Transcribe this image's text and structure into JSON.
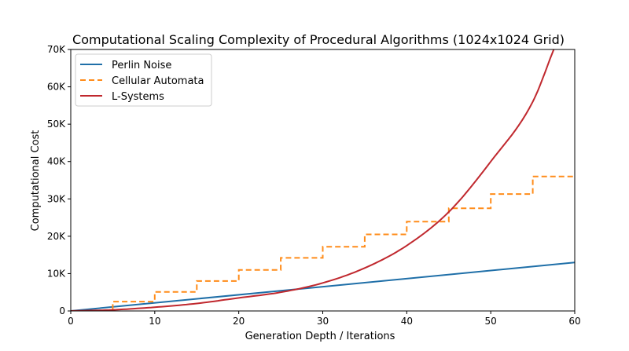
{
  "chart_data": {
    "type": "line",
    "title": "Computational Scaling Complexity of Procedural Algorithms (1024x1024 Grid)",
    "xlabel": "Generation Depth / Iterations",
    "ylabel": "Computational Cost",
    "xlim": [
      0,
      60
    ],
    "ylim": [
      0,
      70000
    ],
    "x_ticks": [
      0,
      10,
      20,
      30,
      40,
      50,
      60
    ],
    "y_ticks": [
      0,
      10000,
      20000,
      30000,
      40000,
      50000,
      60000,
      70000
    ],
    "x_tick_labels": [
      "0",
      "10",
      "20",
      "30",
      "40",
      "50",
      "60"
    ],
    "y_tick_labels": [
      "0",
      "10K",
      "20K",
      "30K",
      "40K",
      "50K",
      "60K",
      "70K"
    ],
    "grid": false,
    "legend_position": "top-left",
    "series": [
      {
        "name": "Perlin Noise",
        "color": "#1f6fa8",
        "style": "solid",
        "x": [
          0,
          60
        ],
        "y": [
          0,
          13000
        ]
      },
      {
        "name": "Cellular Automata",
        "color": "#ff8c1a",
        "style": "dashed-step",
        "x": [
          0,
          5,
          10,
          15,
          20,
          25,
          30,
          35,
          40,
          45,
          50,
          55,
          60
        ],
        "y": [
          0,
          2500,
          5100,
          8000,
          11000,
          14200,
          17200,
          20500,
          23900,
          27500,
          31300,
          36000,
          36000
        ]
      },
      {
        "name": "L-Systems",
        "color": "#c0282e",
        "style": "solid",
        "x": [
          0,
          5,
          10,
          15,
          20,
          25,
          30,
          35,
          40,
          45,
          50,
          55,
          57.5
        ],
        "y": [
          0,
          300,
          1000,
          2000,
          3500,
          5000,
          7500,
          11500,
          17500,
          26500,
          40000,
          56000,
          70000
        ]
      }
    ]
  }
}
